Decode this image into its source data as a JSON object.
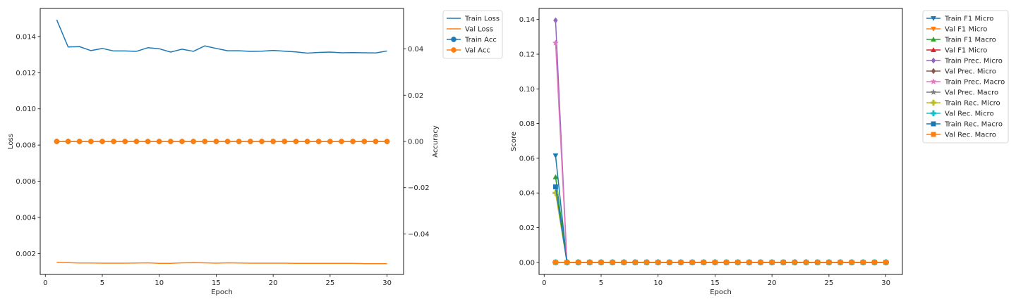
{
  "chart_data": [
    {
      "type": "line",
      "xlabel": "Epoch",
      "ylabel": "Loss",
      "y2label": "Accuracy",
      "xlim": [
        -0.45,
        31.45
      ],
      "ylim": [
        0.00085,
        0.01555
      ],
      "y2lim": [
        -0.0575,
        0.0575
      ],
      "xticks": [
        0,
        5,
        10,
        15,
        20,
        25,
        30
      ],
      "yticks": [
        0.002,
        0.004,
        0.006,
        0.008,
        0.01,
        0.012,
        0.014
      ],
      "ytick_labels": [
        "0.002",
        "0.004",
        "0.006",
        "0.008",
        "0.010",
        "0.012",
        "0.014"
      ],
      "y2ticks": [
        -0.04,
        -0.02,
        0.0,
        0.02,
        0.04
      ],
      "y2tick_labels": [
        "−0.04",
        "−0.02",
        "0.00",
        "0.02",
        "0.04"
      ],
      "grid": false,
      "legend_position": "outside-top-right",
      "x": [
        1,
        2,
        3,
        4,
        5,
        6,
        7,
        8,
        9,
        10,
        11,
        12,
        13,
        14,
        15,
        16,
        17,
        18,
        19,
        20,
        21,
        22,
        23,
        24,
        25,
        26,
        27,
        28,
        29,
        30
      ],
      "series": [
        {
          "name": "Train Loss",
          "axis": "left",
          "color": "#1f77b4",
          "marker": "none",
          "values": [
            0.01492,
            0.01342,
            0.01344,
            0.01322,
            0.01334,
            0.0132,
            0.0132,
            0.01318,
            0.01338,
            0.01332,
            0.01314,
            0.0133,
            0.01318,
            0.01348,
            0.01334,
            0.01321,
            0.01321,
            0.01318,
            0.01319,
            0.01323,
            0.01319,
            0.01315,
            0.01308,
            0.01312,
            0.01314,
            0.0131,
            0.01311,
            0.0131,
            0.01309,
            0.0132
          ]
        },
        {
          "name": "Val Loss",
          "axis": "left",
          "color": "#ff7f0e",
          "marker": "none",
          "values": [
            0.00152,
            0.0015,
            0.00148,
            0.00148,
            0.00147,
            0.00147,
            0.00147,
            0.00148,
            0.00149,
            0.00146,
            0.00146,
            0.00149,
            0.0015,
            0.00149,
            0.00147,
            0.00149,
            0.00148,
            0.00147,
            0.00147,
            0.00147,
            0.00147,
            0.00146,
            0.00146,
            0.00146,
            0.00146,
            0.00146,
            0.00146,
            0.00145,
            0.00145,
            0.00145
          ]
        },
        {
          "name": "Train Acc",
          "axis": "right",
          "color": "#1f77b4",
          "marker": "circle",
          "values": [
            0,
            0,
            0,
            0,
            0,
            0,
            0,
            0,
            0,
            0,
            0,
            0,
            0,
            0,
            0,
            0,
            0,
            0,
            0,
            0,
            0,
            0,
            0,
            0,
            0,
            0,
            0,
            0,
            0,
            0
          ]
        },
        {
          "name": "Val Acc",
          "axis": "right",
          "color": "#ff7f0e",
          "marker": "circle",
          "values": [
            0,
            0,
            0,
            0,
            0,
            0,
            0,
            0,
            0,
            0,
            0,
            0,
            0,
            0,
            0,
            0,
            0,
            0,
            0,
            0,
            0,
            0,
            0,
            0,
            0,
            0,
            0,
            0,
            0,
            0
          ]
        }
      ]
    },
    {
      "type": "line",
      "xlabel": "Epoch",
      "ylabel": "Score",
      "xlim": [
        -0.45,
        31.45
      ],
      "ylim": [
        -0.00697,
        0.14637
      ],
      "xticks": [
        0,
        5,
        10,
        15,
        20,
        25,
        30
      ],
      "yticks": [
        0.0,
        0.02,
        0.04,
        0.06,
        0.08,
        0.1,
        0.12,
        0.14
      ],
      "ytick_labels": [
        "0.00",
        "0.02",
        "0.04",
        "0.06",
        "0.08",
        "0.10",
        "0.12",
        "0.14"
      ],
      "grid": false,
      "legend_position": "outside-top-right",
      "x": [
        1,
        2,
        3,
        4,
        5,
        6,
        7,
        8,
        9,
        10,
        11,
        12,
        13,
        14,
        15,
        16,
        17,
        18,
        19,
        20,
        21,
        22,
        23,
        24,
        25,
        26,
        27,
        28,
        29,
        30
      ],
      "series": [
        {
          "name": "Train F1 Micro",
          "color": "#1f77b4",
          "marker": "triangle-down",
          "values": [
            0.0615,
            0,
            0,
            0,
            0,
            0,
            0,
            0,
            0,
            0,
            0,
            0,
            0,
            0,
            0,
            0,
            0,
            0,
            0,
            0,
            0,
            0,
            0,
            0,
            0,
            0,
            0,
            0,
            0,
            0
          ]
        },
        {
          "name": "Val F1 Micro",
          "color": "#ff7f0e",
          "marker": "triangle-down",
          "values": [
            0,
            0,
            0,
            0,
            0,
            0,
            0,
            0,
            0,
            0,
            0,
            0,
            0,
            0,
            0,
            0,
            0,
            0,
            0,
            0,
            0,
            0,
            0,
            0,
            0,
            0,
            0,
            0,
            0,
            0
          ]
        },
        {
          "name": "Train F1 Macro",
          "color": "#2ca02c",
          "marker": "triangle-up",
          "values": [
            0.0492,
            0,
            0,
            0,
            0,
            0,
            0,
            0,
            0,
            0,
            0,
            0,
            0,
            0,
            0,
            0,
            0,
            0,
            0,
            0,
            0,
            0,
            0,
            0,
            0,
            0,
            0,
            0,
            0,
            0
          ]
        },
        {
          "name": "Val F1 Micro",
          "color": "#d62728",
          "marker": "triangle-up",
          "values": [
            0,
            0,
            0,
            0,
            0,
            0,
            0,
            0,
            0,
            0,
            0,
            0,
            0,
            0,
            0,
            0,
            0,
            0,
            0,
            0,
            0,
            0,
            0,
            0,
            0,
            0,
            0,
            0,
            0,
            0
          ]
        },
        {
          "name": "Train Prec. Micro",
          "color": "#9467bd",
          "marker": "diamond",
          "values": [
            0.1395,
            0,
            0,
            0,
            0,
            0,
            0,
            0,
            0,
            0,
            0,
            0,
            0,
            0,
            0,
            0,
            0,
            0,
            0,
            0,
            0,
            0,
            0,
            0,
            0,
            0,
            0,
            0,
            0,
            0
          ]
        },
        {
          "name": "Val Prec. Micro",
          "color": "#8c564b",
          "marker": "diamond",
          "values": [
            0,
            0,
            0,
            0,
            0,
            0,
            0,
            0,
            0,
            0,
            0,
            0,
            0,
            0,
            0,
            0,
            0,
            0,
            0,
            0,
            0,
            0,
            0,
            0,
            0,
            0,
            0,
            0,
            0,
            0
          ]
        },
        {
          "name": "Train Prec. Macro",
          "color": "#e377c2",
          "marker": "star",
          "values": [
            0.1265,
            0,
            0,
            0,
            0,
            0,
            0,
            0,
            0,
            0,
            0,
            0,
            0,
            0,
            0,
            0,
            0,
            0,
            0,
            0,
            0,
            0,
            0,
            0,
            0,
            0,
            0,
            0,
            0,
            0
          ]
        },
        {
          "name": "Val Prec. Macro",
          "color": "#7f7f7f",
          "marker": "star",
          "values": [
            0,
            0,
            0,
            0,
            0,
            0,
            0,
            0,
            0,
            0,
            0,
            0,
            0,
            0,
            0,
            0,
            0,
            0,
            0,
            0,
            0,
            0,
            0,
            0,
            0,
            0,
            0,
            0,
            0,
            0
          ]
        },
        {
          "name": "Train Rec. Micro",
          "color": "#bcbd22",
          "marker": "plus",
          "values": [
            0.04,
            0,
            0,
            0,
            0,
            0,
            0,
            0,
            0,
            0,
            0,
            0,
            0,
            0,
            0,
            0,
            0,
            0,
            0,
            0,
            0,
            0,
            0,
            0,
            0,
            0,
            0,
            0,
            0,
            0
          ]
        },
        {
          "name": "Val Rec. Micro",
          "color": "#17becf",
          "marker": "plus",
          "values": [
            0,
            0,
            0,
            0,
            0,
            0,
            0,
            0,
            0,
            0,
            0,
            0,
            0,
            0,
            0,
            0,
            0,
            0,
            0,
            0,
            0,
            0,
            0,
            0,
            0,
            0,
            0,
            0,
            0,
            0
          ]
        },
        {
          "name": "Train Rec. Macro",
          "color": "#1f77b4",
          "marker": "square",
          "values": [
            0.0435,
            0,
            0,
            0,
            0,
            0,
            0,
            0,
            0,
            0,
            0,
            0,
            0,
            0,
            0,
            0,
            0,
            0,
            0,
            0,
            0,
            0,
            0,
            0,
            0,
            0,
            0,
            0,
            0,
            0
          ]
        },
        {
          "name": "Val Rec. Macro",
          "color": "#ff7f0e",
          "marker": "square",
          "values": [
            0,
            0,
            0,
            0,
            0,
            0,
            0,
            0,
            0,
            0,
            0,
            0,
            0,
            0,
            0,
            0,
            0,
            0,
            0,
            0,
            0,
            0,
            0,
            0,
            0,
            0,
            0,
            0,
            0,
            0
          ]
        }
      ]
    }
  ]
}
